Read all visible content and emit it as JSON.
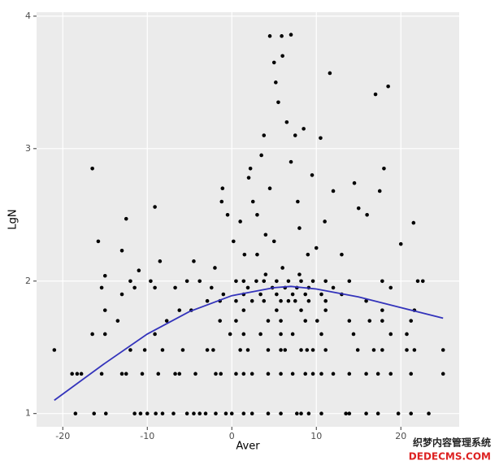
{
  "chart_data": {
    "type": "scatter",
    "x_label": "Aver",
    "y_label": "LgN",
    "color": "#000000",
    "background": "#ebebeb",
    "xlim": [
      -23.1,
      26.9
    ],
    "ylim": [
      0.9,
      4.03
    ],
    "xticks": [
      -20,
      -10,
      0,
      10,
      20
    ],
    "yticks": [
      1,
      2,
      3,
      4
    ],
    "grid": true,
    "x": [
      -18.5,
      -16.3,
      -14.9,
      -11.5,
      -10.8,
      -10,
      -9,
      -8.2,
      -6.9,
      -5.3,
      -4.5,
      -3.8,
      -3.1,
      -1.9,
      -0.7,
      0,
      1.4,
      2.4,
      4.3,
      5.8,
      7.7,
      8.2,
      9.1,
      10.6,
      13.5,
      13.9,
      15.9,
      17.3,
      19.7,
      21.2,
      23.3,
      -18.9,
      -18.3,
      -17.8,
      -15.4,
      -13,
      -12.5,
      -10.6,
      -8.7,
      -6.7,
      -6.2,
      -4.3,
      -1.9,
      -1.3,
      0.5,
      1.4,
      2.4,
      4.3,
      5.8,
      7.2,
      8.7,
      9.6,
      10.6,
      12,
      13.9,
      15.9,
      17.3,
      18.8,
      21.2,
      25,
      -21,
      -12,
      -10.3,
      -8.2,
      -5.8,
      -2.9,
      -2.2,
      1,
      1.9,
      4.3,
      5.8,
      6.3,
      8.2,
      8.9,
      9.6,
      11.1,
      14.9,
      16.8,
      17.8,
      20.7,
      21.6,
      25,
      -16.5,
      -15,
      -9.1,
      -0.2,
      1.4,
      3.4,
      5.8,
      7.2,
      10.6,
      14.4,
      18.8,
      20.7,
      -13.5,
      -7.7,
      -1.4,
      0.5,
      4.3,
      5.8,
      8.7,
      10.1,
      13.9,
      16.3,
      17.8,
      21.2,
      -15,
      -6.2,
      -4.8,
      1.4,
      5.3,
      8.2,
      11.1,
      17.8,
      21.6,
      -2.9,
      -1.4,
      0.5,
      2.4,
      3.8,
      5.8,
      6.7,
      7.5,
      9.1,
      11.1,
      15.9,
      -13,
      -1,
      1.4,
      3.4,
      5.3,
      7.2,
      8.7,
      10.6,
      13,
      -15.4,
      -11.5,
      -9.1,
      -6.7,
      -2.4,
      1.9,
      4.8,
      6.3,
      7.7,
      9.1,
      12,
      18.8,
      -12,
      -9.6,
      -5.3,
      -3.8,
      0.5,
      1.4,
      2.9,
      3.8,
      5.3,
      6.7,
      8.2,
      9.6,
      11.1,
      13.9,
      17.8,
      22.6,
      -16.5,
      -15.8,
      -15,
      -12.5,
      -13,
      -9.1,
      -8.5,
      -11,
      -4.5,
      -2,
      -1.1,
      -1.2,
      -0.5,
      0.2,
      1,
      1.5,
      2,
      2.5,
      2.2,
      3,
      3.5,
      3.8,
      4,
      4.5,
      4.5,
      5,
      5.2,
      5.5,
      5.9,
      6,
      6.5,
      7,
      7.5,
      7,
      7.8,
      8,
      8.5,
      9,
      9.5,
      10.5,
      11,
      11.6,
      12,
      14.5,
      13,
      15,
      16,
      17,
      17.5,
      18,
      18.5,
      20,
      21.5,
      22,
      5,
      6,
      3,
      4,
      8,
      10
    ],
    "values": [
      1,
      1,
      1,
      1,
      1,
      1,
      1,
      1,
      1,
      1,
      1,
      1,
      1,
      1,
      1,
      1,
      1,
      1,
      1,
      1,
      1,
      1,
      1,
      1,
      1,
      1,
      1,
      1,
      1,
      1,
      1,
      1.3,
      1.3,
      1.3,
      1.3,
      1.3,
      1.3,
      1.3,
      1.3,
      1.3,
      1.3,
      1.3,
      1.3,
      1.3,
      1.3,
      1.3,
      1.3,
      1.3,
      1.3,
      1.3,
      1.3,
      1.3,
      1.3,
      1.3,
      1.3,
      1.3,
      1.3,
      1.3,
      1.3,
      1.3,
      1.48,
      1.48,
      1.48,
      1.48,
      1.48,
      1.48,
      1.48,
      1.48,
      1.48,
      1.48,
      1.48,
      1.48,
      1.48,
      1.48,
      1.48,
      1.48,
      1.48,
      1.48,
      1.48,
      1.48,
      1.48,
      1.48,
      1.6,
      1.6,
      1.6,
      1.6,
      1.6,
      1.6,
      1.6,
      1.6,
      1.6,
      1.6,
      1.6,
      1.6,
      1.7,
      1.7,
      1.7,
      1.7,
      1.7,
      1.7,
      1.7,
      1.7,
      1.7,
      1.7,
      1.7,
      1.7,
      1.78,
      1.78,
      1.78,
      1.78,
      1.78,
      1.78,
      1.78,
      1.78,
      1.78,
      1.85,
      1.85,
      1.85,
      1.85,
      1.85,
      1.85,
      1.85,
      1.85,
      1.85,
      1.85,
      1.85,
      1.9,
      1.9,
      1.9,
      1.9,
      1.9,
      1.9,
      1.9,
      1.9,
      1.9,
      1.95,
      1.95,
      1.95,
      1.95,
      1.95,
      1.95,
      1.95,
      1.95,
      1.95,
      1.95,
      1.95,
      1.95,
      2,
      2,
      2,
      2,
      2,
      2,
      2,
      2,
      2,
      2,
      2,
      2,
      2,
      2,
      2,
      2,
      2.85,
      2.3,
      2.04,
      2.47,
      2.23,
      2.56,
      2.15,
      2.08,
      2.15,
      2.1,
      2.7,
      2.6,
      2.5,
      2.3,
      2.45,
      2.2,
      2.78,
      2.6,
      2.85,
      2.5,
      2.95,
      3.1,
      2.35,
      2.7,
      3.85,
      3.65,
      3.5,
      3.35,
      3.85,
      3.7,
      3.2,
      3.86,
      3.1,
      2.9,
      2.6,
      2.4,
      3.15,
      2.2,
      2.8,
      3.08,
      2.45,
      3.57,
      2.68,
      2.74,
      2.2,
      2.55,
      2.5,
      3.41,
      2.68,
      2.85,
      3.47,
      2.28,
      2.44,
      2.0,
      2.3,
      2.1,
      2.2,
      2.05,
      2.05,
      2.25
    ],
    "fit": {
      "color": "#3333bb",
      "x": [
        -21,
        -15,
        -10,
        -5,
        0,
        5,
        7,
        10,
        15,
        20,
        25
      ],
      "values": [
        1.1,
        1.38,
        1.6,
        1.77,
        1.89,
        1.95,
        1.96,
        1.94,
        1.88,
        1.8,
        1.72
      ]
    }
  },
  "watermark": {
    "line1": "织梦内容管理系统",
    "line2": "DEDECMS.COM"
  }
}
